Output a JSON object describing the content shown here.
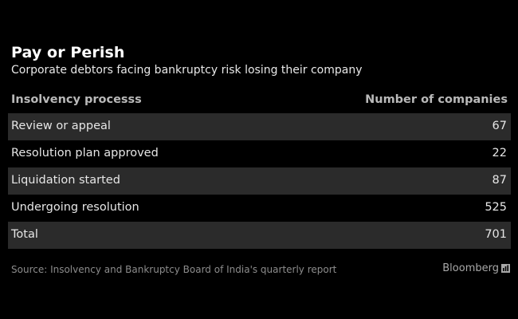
{
  "title": "Pay or Perish",
  "subtitle": "Corporate debtors facing bankruptcy risk losing their company",
  "source": "Source: Insolvency and Bankruptcy Board of India's quarterly report",
  "brand": "Bloomberg",
  "chart_data": {
    "type": "table",
    "title": "Pay or Perish",
    "subtitle": "Corporate debtors facing bankruptcy risk losing their company",
    "columns": [
      "Insolvency processs",
      "Number of companies"
    ],
    "rows": [
      {
        "label": "Review or appeal",
        "value": "67"
      },
      {
        "label": "Resolution plan approved",
        "value": "22"
      },
      {
        "label": "Liquidation started",
        "value": "87"
      },
      {
        "label": "Undergoing resolution",
        "value": "525"
      },
      {
        "label": "Total",
        "value": "701"
      }
    ],
    "colors": {
      "background": "#000000",
      "row_shade": "#2b2b2b",
      "header_text": "#b9b9b9"
    }
  }
}
